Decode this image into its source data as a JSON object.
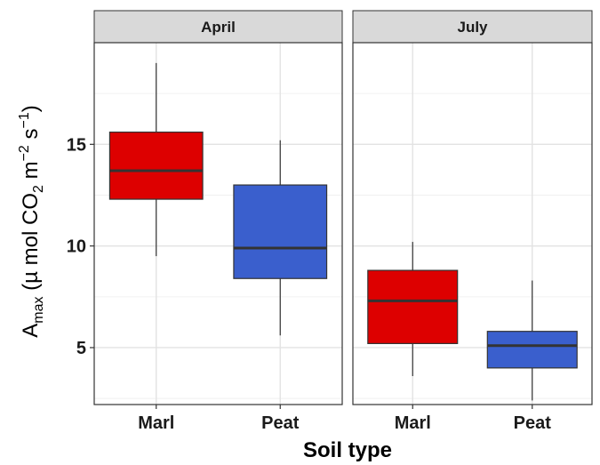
{
  "chart_data": {
    "type": "boxplot",
    "xlabel": "Soil type",
    "ylabel": {
      "parts": [
        {
          "text": "A",
          "style": "normal"
        },
        {
          "text": "max",
          "style": "sub"
        },
        {
          "text": " (µ mol CO",
          "style": "normal"
        },
        {
          "text": "2",
          "style": "sub"
        },
        {
          "text": " m",
          "style": "normal"
        },
        {
          "text": "−2",
          "style": "sup"
        },
        {
          "text": " s",
          "style": "normal"
        },
        {
          "text": "−1",
          "style": "sup"
        },
        {
          "text": ")",
          "style": "normal"
        }
      ]
    },
    "ylim": [
      2.2,
      20.0
    ],
    "y_ticks": [
      5,
      10,
      15
    ],
    "y_minor_ticks": [
      2.5,
      7.5,
      12.5,
      17.5
    ],
    "grid": true,
    "categories": [
      "Marl",
      "Peat"
    ],
    "colors": {
      "Marl": "#dd0000",
      "Peat": "#3a5fcd"
    },
    "panels": [
      {
        "label": "April",
        "boxes": [
          {
            "category": "Marl",
            "min": 9.5,
            "q1": 12.3,
            "median": 13.7,
            "q3": 15.6,
            "max": 19.0
          },
          {
            "category": "Peat",
            "min": 5.6,
            "q1": 8.4,
            "median": 9.9,
            "q3": 13.0,
            "max": 15.2
          }
        ]
      },
      {
        "label": "July",
        "boxes": [
          {
            "category": "Marl",
            "min": 3.6,
            "q1": 5.2,
            "median": 7.3,
            "q3": 8.8,
            "max": 10.2
          },
          {
            "category": "Peat",
            "min": 2.4,
            "q1": 4.0,
            "median": 5.1,
            "q3": 5.8,
            "max": 8.3
          }
        ]
      }
    ]
  }
}
